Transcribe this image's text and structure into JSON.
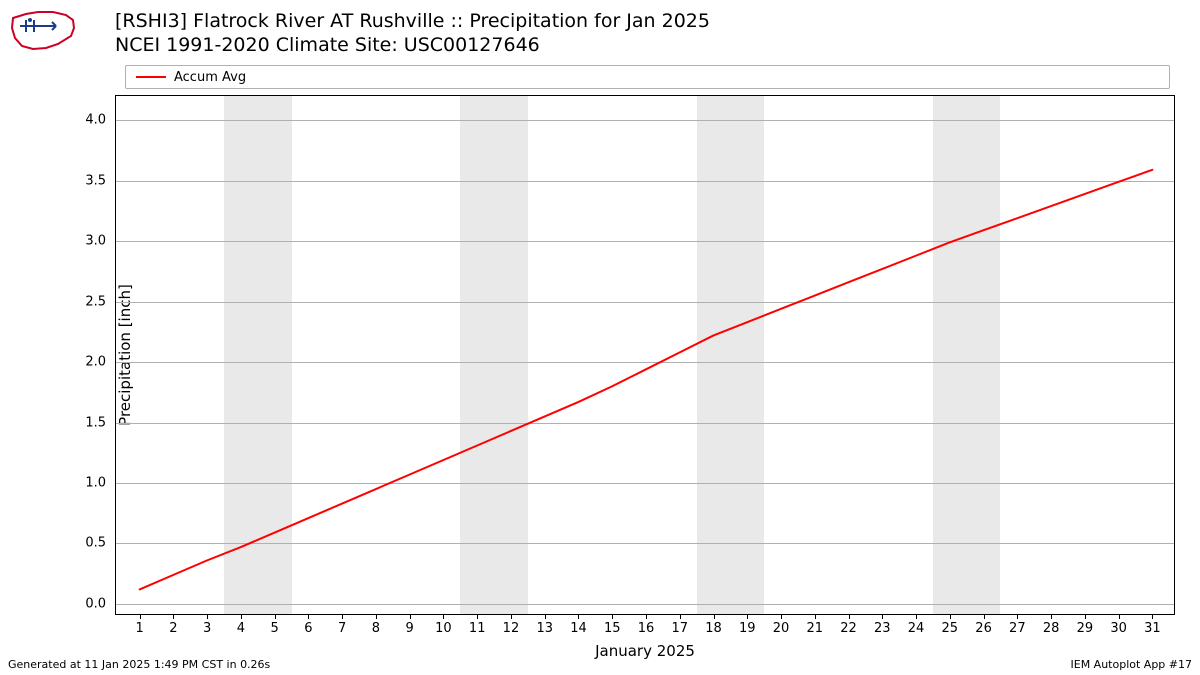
{
  "title_line1": "[RSHI3] Flatrock River  AT Rushville :: Precipitation for Jan 2025",
  "title_line2": "NCEI 1991-2020 Climate Site: USC00127646",
  "legend": {
    "label": "Accum Avg",
    "color": "#ff0000"
  },
  "footer_left": "Generated at 11 Jan 2025 1:49 PM CST in 0.26s",
  "footer_right": "IEM Autoplot App #17",
  "chart": {
    "type": "line",
    "xlabel": "January 2025",
    "ylabel": "Precipitation [inch]",
    "background_color": "#ffffff",
    "grid_color": "#b0b0b0",
    "weekend_band_color": "#e9e9e9",
    "line_color": "#ff0000",
    "line_width": 2,
    "xlim": [
      0.3,
      31.7
    ],
    "ylim": [
      -0.1,
      4.2
    ],
    "yticks": [
      0.0,
      0.5,
      1.0,
      1.5,
      2.0,
      2.5,
      3.0,
      3.5,
      4.0
    ],
    "xticks": [
      1,
      2,
      3,
      4,
      5,
      6,
      7,
      8,
      9,
      10,
      11,
      12,
      13,
      14,
      15,
      16,
      17,
      18,
      19,
      20,
      21,
      22,
      23,
      24,
      25,
      26,
      27,
      28,
      29,
      30,
      31
    ],
    "weekend_bands": [
      [
        3.5,
        5.5
      ],
      [
        10.5,
        12.5
      ],
      [
        17.5,
        19.5
      ],
      [
        24.5,
        26.5
      ]
    ],
    "series": {
      "x": [
        1,
        2,
        3,
        4,
        5,
        6,
        7,
        8,
        9,
        10,
        11,
        12,
        13,
        14,
        15,
        16,
        17,
        18,
        19,
        20,
        21,
        22,
        23,
        24,
        25,
        26,
        27,
        28,
        29,
        30,
        31
      ],
      "y": [
        0.12,
        0.24,
        0.36,
        0.47,
        0.59,
        0.71,
        0.83,
        0.95,
        1.07,
        1.19,
        1.31,
        1.43,
        1.55,
        1.67,
        1.8,
        1.94,
        2.08,
        2.22,
        2.33,
        2.44,
        2.55,
        2.66,
        2.77,
        2.88,
        2.99,
        3.09,
        3.19,
        3.29,
        3.39,
        3.49,
        3.59
      ]
    },
    "tick_fontsize": 13,
    "label_fontsize": 15,
    "title_fontsize": 19
  },
  "logo": {
    "outline_color": "#cc0024",
    "accent_color": "#1f3a8a"
  }
}
